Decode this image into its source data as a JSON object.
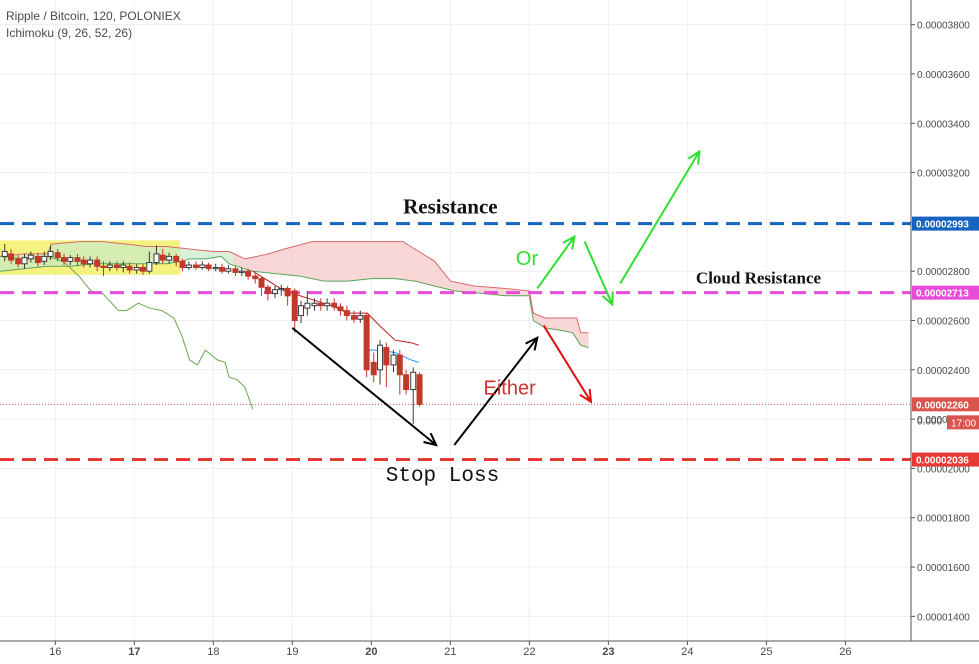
{
  "header": {
    "symbol": "Ripple / Bitcoin, 120, POLONIEX",
    "indicator": "Ichimoku (9, 26, 52, 26)"
  },
  "colors": {
    "up": "#3a3a3a",
    "down": "#c0392b",
    "resistance": "#1565c0",
    "cloud_resistance": "#e64bd9",
    "stop_loss": "#e53935",
    "green_arrows": "#2ee02e",
    "black_arrows": "#000000",
    "red_arrow": "#e01010",
    "cloud_bear": "#f7c9c9",
    "cloud_bull": "#c8ebc8",
    "highlight": "#f3f06a"
  },
  "chart_data": {
    "type": "candlestick",
    "x_axis": {
      "ticks": [
        "16",
        "17",
        "18",
        "19",
        "20",
        "21",
        "22",
        "23",
        "24",
        "25",
        "26"
      ],
      "bold_ticks": [
        "17",
        "20",
        "23"
      ],
      "range_days": [
        15.3,
        26.83
      ]
    },
    "y_axis": {
      "ticks": [
        "0.00003800",
        "0.00003600",
        "0.00003400",
        "0.00003200",
        "0.00003000",
        "0.00002800",
        "0.00002600",
        "0.00002400",
        "0.00002200",
        "0.00002000",
        "0.00001800",
        "0.00001600",
        "0.00001400"
      ],
      "range": [
        1.3e-05,
        3.9e-05
      ],
      "grid": true
    },
    "price_badges": [
      {
        "text": "0.00002993",
        "value": 2.993e-05,
        "color": "#1565c0"
      },
      {
        "text": "0.00002713",
        "value": 2.713e-05,
        "color": "#e64bd9"
      },
      {
        "text": "0.00002260",
        "value": 2.26e-05,
        "color": "#d9534f"
      },
      {
        "text": "0.00002036",
        "value": 2.036e-05,
        "color": "#e53935"
      }
    ],
    "countdown": "17:00",
    "partial_label": "0.000",
    "last_price": 2.26e-05,
    "horizontal_lines": [
      {
        "name": "Resistance",
        "value": 2.993e-05,
        "color": "#1565c0"
      },
      {
        "name": "Cloud Resistance",
        "value": 2.713e-05,
        "color": "#e64bd9"
      },
      {
        "name": "Stop Loss",
        "value": 2.036e-05,
        "color": "#e53935"
      }
    ],
    "annotations": [
      {
        "text": "Resistance",
        "x": 21.0,
        "y": 3.035e-05,
        "color": "#111111",
        "style": "serif"
      },
      {
        "text": "Cloud Resistance",
        "x": 24.9,
        "y": 2.75e-05,
        "color": "#111111",
        "style": "serif"
      },
      {
        "text": "Stop Loss",
        "x": 20.9,
        "y": 1.95e-05,
        "color": "#111111",
        "style": "mono"
      },
      {
        "text": "Or",
        "x": 21.97,
        "y": 2.825e-05,
        "color": "#2ee02e",
        "style": "sans"
      },
      {
        "text": "Either",
        "x": 21.75,
        "y": 2.3e-05,
        "color": "#d32f2f",
        "style": "sans"
      }
    ],
    "arrows": [
      {
        "color": "#000000",
        "from": [
          19.0,
          2.57e-05
        ],
        "to": [
          20.82,
          2.095e-05
        ]
      },
      {
        "color": "#000000",
        "from": [
          21.05,
          2.095e-05
        ],
        "to": [
          22.1,
          2.53e-05
        ]
      },
      {
        "color": "#2ee02e",
        "from": [
          22.1,
          2.73e-05
        ],
        "to": [
          22.57,
          2.94e-05
        ]
      },
      {
        "color": "#2ee02e",
        "from": [
          22.7,
          2.92e-05
        ],
        "to": [
          23.05,
          2.665e-05
        ]
      },
      {
        "color": "#2ee02e",
        "from": [
          23.15,
          2.75e-05
        ],
        "to": [
          24.15,
          3.285e-05
        ]
      },
      {
        "color": "#e01010",
        "from": [
          22.18,
          2.58e-05
        ],
        "to": [
          22.78,
          2.27e-05
        ]
      }
    ],
    "highlight_box": {
      "x": [
        15.3,
        17.58
      ],
      "y": [
        2.785e-05,
        2.925e-05
      ]
    },
    "candles": [
      {
        "x": 15.36,
        "o": 2.86e-05,
        "c": 2.88e-05,
        "h": 2.91e-05,
        "l": 2.84e-05
      },
      {
        "x": 15.44,
        "o": 2.87e-05,
        "c": 2.845e-05,
        "h": 2.89e-05,
        "l": 2.83e-05
      },
      {
        "x": 15.53,
        "o": 2.85e-05,
        "c": 2.83e-05,
        "h": 2.865e-05,
        "l": 2.815e-05
      },
      {
        "x": 15.61,
        "o": 2.83e-05,
        "c": 2.855e-05,
        "h": 2.87e-05,
        "l": 2.81e-05
      },
      {
        "x": 15.69,
        "o": 2.85e-05,
        "c": 2.865e-05,
        "h": 2.88e-05,
        "l": 2.835e-05
      },
      {
        "x": 15.78,
        "o": 2.86e-05,
        "c": 2.835e-05,
        "h": 2.875e-05,
        "l": 2.82e-05
      },
      {
        "x": 15.86,
        "o": 2.84e-05,
        "c": 2.86e-05,
        "h": 2.88e-05,
        "l": 2.825e-05
      },
      {
        "x": 15.94,
        "o": 2.86e-05,
        "c": 2.88e-05,
        "h": 2.905e-05,
        "l": 2.845e-05
      },
      {
        "x": 16.03,
        "o": 2.875e-05,
        "c": 2.855e-05,
        "h": 2.89e-05,
        "l": 2.84e-05
      },
      {
        "x": 16.11,
        "o": 2.855e-05,
        "c": 2.84e-05,
        "h": 2.87e-05,
        "l": 2.825e-05
      },
      {
        "x": 16.19,
        "o": 2.84e-05,
        "c": 2.855e-05,
        "h": 2.865e-05,
        "l": 2.825e-05
      },
      {
        "x": 16.28,
        "o": 2.855e-05,
        "c": 2.84e-05,
        "h": 2.87e-05,
        "l": 2.82e-05
      },
      {
        "x": 16.36,
        "o": 2.845e-05,
        "c": 2.83e-05,
        "h": 2.86e-05,
        "l": 2.815e-05
      },
      {
        "x": 16.44,
        "o": 2.83e-05,
        "c": 2.845e-05,
        "h": 2.86e-05,
        "l": 2.815e-05
      },
      {
        "x": 16.53,
        "o": 2.845e-05,
        "c": 2.82e-05,
        "h": 2.86e-05,
        "l": 2.8e-05
      },
      {
        "x": 16.61,
        "o": 2.82e-05,
        "c": 2.815e-05,
        "h": 2.84e-05,
        "l": 2.78e-05
      },
      {
        "x": 16.69,
        "o": 2.815e-05,
        "c": 2.825e-05,
        "h": 2.84e-05,
        "l": 2.8e-05
      },
      {
        "x": 16.78,
        "o": 2.825e-05,
        "c": 2.815e-05,
        "h": 2.84e-05,
        "l": 2.8e-05
      },
      {
        "x": 16.86,
        "o": 2.815e-05,
        "c": 2.825e-05,
        "h": 2.84e-05,
        "l": 2.795e-05
      },
      {
        "x": 16.94,
        "o": 2.82e-05,
        "c": 2.805e-05,
        "h": 2.835e-05,
        "l": 2.79e-05
      },
      {
        "x": 17.03,
        "o": 2.805e-05,
        "c": 2.815e-05,
        "h": 2.83e-05,
        "l": 2.79e-05
      },
      {
        "x": 17.11,
        "o": 2.815e-05,
        "c": 2.8e-05,
        "h": 2.83e-05,
        "l": 2.785e-05
      },
      {
        "x": 17.19,
        "o": 2.8e-05,
        "c": 2.835e-05,
        "h": 2.88e-05,
        "l": 2.79e-05
      },
      {
        "x": 17.28,
        "o": 2.835e-05,
        "c": 2.87e-05,
        "h": 2.905e-05,
        "l": 2.825e-05
      },
      {
        "x": 17.36,
        "o": 2.865e-05,
        "c": 2.845e-05,
        "h": 2.89e-05,
        "l": 2.83e-05
      },
      {
        "x": 17.44,
        "o": 2.845e-05,
        "c": 2.86e-05,
        "h": 2.875e-05,
        "l": 2.83e-05
      },
      {
        "x": 17.53,
        "o": 2.86e-05,
        "c": 2.84e-05,
        "h": 2.87e-05,
        "l": 2.82e-05
      },
      {
        "x": 17.61,
        "o": 2.84e-05,
        "c": 2.815e-05,
        "h": 2.85e-05,
        "l": 2.8e-05
      },
      {
        "x": 17.69,
        "o": 2.815e-05,
        "c": 2.825e-05,
        "h": 2.84e-05,
        "l": 2.805e-05
      },
      {
        "x": 17.78,
        "o": 2.825e-05,
        "c": 2.815e-05,
        "h": 2.84e-05,
        "l": 2.805e-05
      },
      {
        "x": 17.86,
        "o": 2.815e-05,
        "c": 2.825e-05,
        "h": 2.84e-05,
        "l": 2.805e-05
      },
      {
        "x": 17.94,
        "o": 2.825e-05,
        "c": 2.81e-05,
        "h": 2.835e-05,
        "l": 2.8e-05
      },
      {
        "x": 18.03,
        "o": 2.81e-05,
        "c": 2.815e-05,
        "h": 2.83e-05,
        "l": 2.8e-05
      },
      {
        "x": 18.11,
        "o": 2.815e-05,
        "c": 2.8e-05,
        "h": 2.83e-05,
        "l": 2.79e-05
      },
      {
        "x": 18.19,
        "o": 2.8e-05,
        "c": 2.81e-05,
        "h": 2.825e-05,
        "l": 2.79e-05
      },
      {
        "x": 18.28,
        "o": 2.81e-05,
        "c": 2.795e-05,
        "h": 2.82e-05,
        "l": 2.78e-05
      },
      {
        "x": 18.36,
        "o": 2.795e-05,
        "c": 2.8e-05,
        "h": 2.815e-05,
        "l": 2.78e-05
      },
      {
        "x": 18.44,
        "o": 2.8e-05,
        "c": 2.78e-05,
        "h": 2.81e-05,
        "l": 2.765e-05
      },
      {
        "x": 18.53,
        "o": 2.78e-05,
        "c": 2.77e-05,
        "h": 2.795e-05,
        "l": 2.75e-05
      },
      {
        "x": 18.61,
        "o": 2.77e-05,
        "c": 2.735e-05,
        "h": 2.78e-05,
        "l": 2.7e-05
      },
      {
        "x": 18.69,
        "o": 2.735e-05,
        "c": 2.71e-05,
        "h": 2.745e-05,
        "l": 2.68e-05
      },
      {
        "x": 18.78,
        "o": 2.71e-05,
        "c": 2.725e-05,
        "h": 2.74e-05,
        "l": 2.69e-05
      },
      {
        "x": 18.86,
        "o": 2.725e-05,
        "c": 2.73e-05,
        "h": 2.745e-05,
        "l": 2.7e-05
      },
      {
        "x": 18.94,
        "o": 2.73e-05,
        "c": 2.7e-05,
        "h": 2.74e-05,
        "l": 2.66e-05
      },
      {
        "x": 19.03,
        "o": 2.72e-05,
        "c": 2.6e-05,
        "h": 2.73e-05,
        "l": 2.55e-05
      },
      {
        "x": 19.11,
        "o": 2.62e-05,
        "c": 2.66e-05,
        "h": 2.68e-05,
        "l": 2.59e-05
      },
      {
        "x": 19.19,
        "o": 2.65e-05,
        "c": 2.67e-05,
        "h": 2.72e-05,
        "l": 2.62e-05
      },
      {
        "x": 19.28,
        "o": 2.66e-05,
        "c": 2.67e-05,
        "h": 2.69e-05,
        "l": 2.64e-05
      },
      {
        "x": 19.36,
        "o": 2.67e-05,
        "c": 2.66e-05,
        "h": 2.69e-05,
        "l": 2.64e-05
      },
      {
        "x": 19.44,
        "o": 2.66e-05,
        "c": 2.67e-05,
        "h": 2.69e-05,
        "l": 2.64e-05
      },
      {
        "x": 19.53,
        "o": 2.67e-05,
        "c": 2.655e-05,
        "h": 2.69e-05,
        "l": 2.64e-05
      },
      {
        "x": 19.61,
        "o": 2.655e-05,
        "c": 2.64e-05,
        "h": 2.67e-05,
        "l": 2.62e-05
      },
      {
        "x": 19.69,
        "o": 2.64e-05,
        "c": 2.62e-05,
        "h": 2.66e-05,
        "l": 2.6e-05
      },
      {
        "x": 19.78,
        "o": 2.62e-05,
        "c": 2.605e-05,
        "h": 2.64e-05,
        "l": 2.59e-05
      },
      {
        "x": 19.86,
        "o": 2.605e-05,
        "c": 2.62e-05,
        "h": 2.64e-05,
        "l": 2.59e-05
      },
      {
        "x": 19.94,
        "o": 2.62e-05,
        "c": 2.4e-05,
        "h": 2.63e-05,
        "l": 2.37e-05
      },
      {
        "x": 20.03,
        "o": 2.43e-05,
        "c": 2.38e-05,
        "h": 2.47e-05,
        "l": 2.35e-05
      },
      {
        "x": 20.11,
        "o": 2.4e-05,
        "c": 2.5e-05,
        "h": 2.52e-05,
        "l": 2.34e-05
      },
      {
        "x": 20.19,
        "o": 2.49e-05,
        "c": 2.42e-05,
        "h": 2.51e-05,
        "l": 2.33e-05
      },
      {
        "x": 20.28,
        "o": 2.42e-05,
        "c": 2.46e-05,
        "h": 2.48e-05,
        "l": 2.39e-05
      },
      {
        "x": 20.36,
        "o": 2.46e-05,
        "c": 2.38e-05,
        "h": 2.48e-05,
        "l": 2.3e-05
      },
      {
        "x": 20.44,
        "o": 2.38e-05,
        "c": 2.32e-05,
        "h": 2.4e-05,
        "l": 2.3e-05
      },
      {
        "x": 20.53,
        "o": 2.32e-05,
        "c": 2.39e-05,
        "h": 2.41e-05,
        "l": 2.18e-05
      },
      {
        "x": 20.61,
        "o": 2.38e-05,
        "c": 2.26e-05,
        "h": 2.39e-05,
        "l": 2.25e-05
      }
    ],
    "tenkan": [
      [
        19.95,
        2.48e-05
      ],
      [
        20.1,
        2.48e-05
      ],
      [
        20.3,
        2.47e-05
      ],
      [
        20.5,
        2.44e-05
      ],
      [
        20.6,
        2.43e-05
      ]
    ],
    "kijun": [
      [
        18.5,
        2.8e-05
      ],
      [
        18.7,
        2.76e-05
      ],
      [
        18.9,
        2.72e-05
      ],
      [
        19.2,
        2.69e-05
      ],
      [
        19.5,
        2.66e-05
      ],
      [
        19.7,
        2.63e-05
      ],
      [
        19.95,
        2.63e-05
      ],
      [
        20.1,
        2.58e-05
      ],
      [
        20.3,
        2.52e-05
      ],
      [
        20.5,
        2.51e-05
      ],
      [
        20.6,
        2.5e-05
      ]
    ],
    "chikou": [
      [
        15.3,
        2.86e-05
      ],
      [
        15.6,
        2.85e-05
      ],
      [
        15.9,
        2.86e-05
      ],
      [
        16.1,
        2.84e-05
      ],
      [
        16.3,
        2.78e-05
      ],
      [
        16.45,
        2.72e-05
      ],
      [
        16.6,
        2.71e-05
      ],
      [
        16.8,
        2.64e-05
      ],
      [
        16.9,
        2.64e-05
      ],
      [
        17.05,
        2.67e-05
      ],
      [
        17.2,
        2.65e-05
      ],
      [
        17.35,
        2.64e-05
      ],
      [
        17.5,
        2.61e-05
      ],
      [
        17.6,
        2.54e-05
      ],
      [
        17.7,
        2.44e-05
      ],
      [
        17.8,
        2.42e-05
      ],
      [
        17.9,
        2.48e-05
      ],
      [
        18.05,
        2.44e-05
      ],
      [
        18.15,
        2.43e-05
      ],
      [
        18.2,
        2.37e-05
      ],
      [
        18.3,
        2.36e-05
      ],
      [
        18.4,
        2.33e-05
      ],
      [
        18.5,
        2.24e-05
      ]
    ],
    "span_a": [
      [
        15.3,
        2.8e-05
      ],
      [
        15.6,
        2.81e-05
      ],
      [
        15.9,
        2.82e-05
      ],
      [
        16.2,
        2.82e-05
      ],
      [
        16.5,
        2.83e-05
      ],
      [
        16.8,
        2.83e-05
      ],
      [
        17.1,
        2.83e-05
      ],
      [
        17.4,
        2.83e-05
      ],
      [
        17.6,
        2.84e-05
      ],
      [
        17.7,
        2.85e-05
      ],
      [
        17.9,
        2.85e-05
      ],
      [
        18.1,
        2.86e-05
      ],
      [
        18.2,
        2.83e-05
      ],
      [
        18.5,
        2.8e-05
      ],
      [
        18.8,
        2.79e-05
      ],
      [
        19.1,
        2.78e-05
      ],
      [
        19.4,
        2.76e-05
      ],
      [
        19.7,
        2.76e-05
      ],
      [
        20.0,
        2.77e-05
      ],
      [
        20.3,
        2.77e-05
      ],
      [
        20.55,
        2.76e-05
      ],
      [
        20.8,
        2.74e-05
      ],
      [
        21.05,
        2.72e-05
      ],
      [
        21.4,
        2.71e-05
      ],
      [
        21.7,
        2.7e-05
      ],
      [
        22.0,
        2.7e-05
      ],
      [
        22.05,
        2.6e-05
      ],
      [
        22.2,
        2.57e-05
      ],
      [
        22.4,
        2.56e-05
      ],
      [
        22.55,
        2.55e-05
      ],
      [
        22.65,
        2.5e-05
      ],
      [
        22.75,
        2.49e-05
      ]
    ],
    "span_b": [
      [
        15.3,
        2.86e-05
      ],
      [
        15.6,
        2.87e-05
      ],
      [
        15.9,
        2.87e-05
      ],
      [
        15.95,
        2.91e-05
      ],
      [
        16.3,
        2.92e-05
      ],
      [
        16.6,
        2.92e-05
      ],
      [
        16.9,
        2.91e-05
      ],
      [
        17.15,
        2.9e-05
      ],
      [
        17.4,
        2.9e-05
      ],
      [
        17.7,
        2.89e-05
      ],
      [
        18.0,
        2.88e-05
      ],
      [
        18.2,
        2.88e-05
      ],
      [
        18.4,
        2.85e-05
      ],
      [
        18.7,
        2.87e-05
      ],
      [
        18.9,
        2.89e-05
      ],
      [
        19.25,
        2.92e-05
      ],
      [
        19.6,
        2.92e-05
      ],
      [
        20.0,
        2.92e-05
      ],
      [
        20.4,
        2.92e-05
      ],
      [
        20.55,
        2.89e-05
      ],
      [
        20.8,
        2.84e-05
      ],
      [
        21.0,
        2.76e-05
      ],
      [
        21.3,
        2.74e-05
      ],
      [
        21.7,
        2.73e-05
      ],
      [
        22.0,
        2.72e-05
      ],
      [
        22.05,
        2.63e-05
      ],
      [
        22.2,
        2.61e-05
      ],
      [
        22.6,
        2.61e-05
      ],
      [
        22.65,
        2.55e-05
      ],
      [
        22.75,
        2.55e-05
      ]
    ]
  }
}
